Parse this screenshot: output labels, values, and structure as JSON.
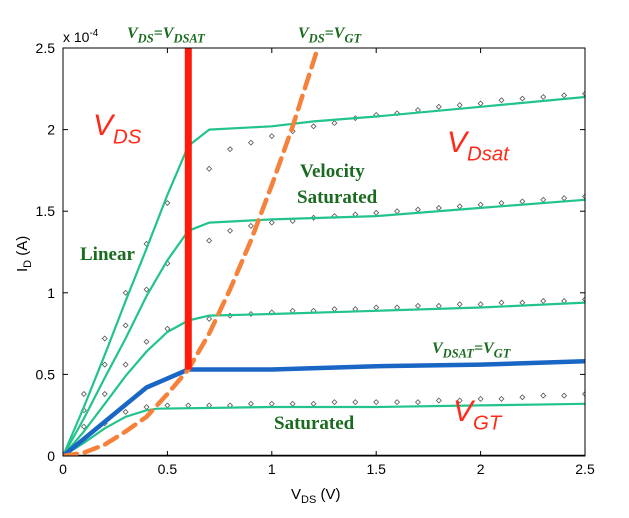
{
  "chart_data": {
    "type": "line",
    "title": "",
    "xlabel": {
      "main": "V",
      "sub": "DS",
      "unit": " (V)"
    },
    "ylabel": {
      "main": "I",
      "sub": "D",
      "unit": " (A)"
    },
    "y_multiplier": "x 10",
    "y_multiplier_exp": "-4",
    "xlim": [
      0,
      2.5
    ],
    "ylim": [
      0,
      2.5
    ],
    "x_ticks": [
      0,
      0.5,
      1,
      1.5,
      2,
      2.5
    ],
    "x_tick_labels": [
      "0",
      "0.5",
      "1",
      "1.5",
      "2",
      "2.5"
    ],
    "y_ticks": [
      0,
      0.5,
      1,
      1.5,
      2,
      2.5
    ],
    "y_tick_labels": [
      "0",
      "0.5",
      "1",
      "1.5",
      "2",
      "2.5"
    ],
    "grid": false,
    "colors": {
      "model": "#22c48c",
      "highlight": "#1a66c4",
      "vdsat_line": "#ff1a0a",
      "vgt_curve": "#f5813b",
      "red_text": "#ff2a1a",
      "green_text": "#1a6b1f",
      "axis_zero": "#000000"
    },
    "series": [
      {
        "role": "model",
        "points": [
          [
            0,
            0
          ],
          [
            0.1,
            0.3
          ],
          [
            0.2,
            0.62
          ],
          [
            0.3,
            0.95
          ],
          [
            0.4,
            1.27
          ],
          [
            0.5,
            1.6
          ],
          [
            0.6,
            1.9
          ],
          [
            0.7,
            2.0
          ],
          [
            1,
            2.02
          ],
          [
            1.2,
            2.05
          ],
          [
            1.5,
            2.08
          ],
          [
            2,
            2.14
          ],
          [
            2.5,
            2.2
          ]
        ]
      },
      {
        "role": "model",
        "points": [
          [
            0,
            0
          ],
          [
            0.1,
            0.23
          ],
          [
            0.2,
            0.48
          ],
          [
            0.3,
            0.72
          ],
          [
            0.4,
            0.98
          ],
          [
            0.5,
            1.2
          ],
          [
            0.6,
            1.38
          ],
          [
            0.7,
            1.43
          ],
          [
            1,
            1.45
          ],
          [
            1.5,
            1.47
          ],
          [
            2,
            1.52
          ],
          [
            2.5,
            1.57
          ]
        ]
      },
      {
        "role": "model",
        "points": [
          [
            0,
            0
          ],
          [
            0.1,
            0.15
          ],
          [
            0.2,
            0.32
          ],
          [
            0.3,
            0.49
          ],
          [
            0.4,
            0.64
          ],
          [
            0.5,
            0.76
          ],
          [
            0.6,
            0.83
          ],
          [
            0.7,
            0.86
          ],
          [
            1,
            0.87
          ],
          [
            1.5,
            0.89
          ],
          [
            2,
            0.91
          ],
          [
            2.5,
            0.94
          ]
        ]
      },
      {
        "role": "model",
        "points": [
          [
            0,
            0
          ],
          [
            0.1,
            0.08
          ],
          [
            0.2,
            0.17
          ],
          [
            0.3,
            0.24
          ],
          [
            0.4,
            0.28
          ],
          [
            0.45,
            0.29
          ],
          [
            1,
            0.3
          ],
          [
            1.5,
            0.3
          ],
          [
            2,
            0.31
          ],
          [
            2.5,
            0.32
          ]
        ]
      },
      {
        "role": "highlight",
        "points": [
          [
            0,
            0
          ],
          [
            0.4,
            0.42
          ],
          [
            0.6,
            0.53
          ],
          [
            1,
            0.53
          ],
          [
            1.5,
            0.55
          ],
          [
            2,
            0.56
          ],
          [
            2.5,
            0.58
          ]
        ]
      },
      {
        "role": "vgt_curve",
        "points": [
          [
            0,
            0
          ],
          [
            0.1,
            0.02
          ],
          [
            0.2,
            0.07
          ],
          [
            0.3,
            0.15
          ],
          [
            0.4,
            0.24
          ],
          [
            0.5,
            0.38
          ],
          [
            0.6,
            0.53
          ],
          [
            0.7,
            0.75
          ],
          [
            0.8,
            1.02
          ],
          [
            0.9,
            1.32
          ],
          [
            1,
            1.66
          ],
          [
            1.1,
            2.02
          ],
          [
            1.2,
            2.42
          ],
          [
            1.22,
            2.5
          ]
        ]
      },
      {
        "role": "vdsat_line",
        "points": [
          [
            0.6,
            0.53
          ],
          [
            0.6,
            2.5
          ]
        ]
      },
      {
        "role": "axis_zero",
        "points": [
          [
            0,
            0
          ],
          [
            2.5,
            0
          ]
        ]
      },
      {
        "role": "measured",
        "points": [
          [
            0.1,
            0.38
          ],
          [
            0.2,
            0.72
          ],
          [
            0.3,
            1.0
          ],
          [
            0.4,
            1.3
          ],
          [
            0.5,
            1.55
          ],
          [
            0.6,
            1.72
          ],
          [
            0.7,
            1.76
          ],
          [
            0.8,
            1.88
          ],
          [
            0.9,
            1.92
          ],
          [
            1,
            1.96
          ],
          [
            1.1,
            1.99
          ],
          [
            1.2,
            2.02
          ],
          [
            1.3,
            2.04
          ],
          [
            1.4,
            2.07
          ],
          [
            1.5,
            2.09
          ],
          [
            1.6,
            2.1
          ],
          [
            1.7,
            2.12
          ],
          [
            1.8,
            2.14
          ],
          [
            1.9,
            2.15
          ],
          [
            2,
            2.16
          ],
          [
            2.1,
            2.18
          ],
          [
            2.2,
            2.19
          ],
          [
            2.3,
            2.2
          ],
          [
            2.4,
            2.21
          ],
          [
            2.5,
            2.22
          ],
          [
            0.1,
            0.28
          ],
          [
            0.2,
            0.56
          ],
          [
            0.3,
            0.8
          ],
          [
            0.4,
            1.02
          ],
          [
            0.5,
            1.18
          ],
          [
            0.6,
            1.28
          ],
          [
            0.7,
            1.32
          ],
          [
            0.8,
            1.38
          ],
          [
            0.9,
            1.41
          ],
          [
            1,
            1.43
          ],
          [
            1.1,
            1.44
          ],
          [
            1.2,
            1.46
          ],
          [
            1.3,
            1.47
          ],
          [
            1.4,
            1.48
          ],
          [
            1.5,
            1.49
          ],
          [
            1.6,
            1.5
          ],
          [
            1.7,
            1.51
          ],
          [
            1.8,
            1.52
          ],
          [
            1.9,
            1.53
          ],
          [
            2,
            1.54
          ],
          [
            2.1,
            1.55
          ],
          [
            2.2,
            1.56
          ],
          [
            2.3,
            1.57
          ],
          [
            2.4,
            1.58
          ],
          [
            2.5,
            1.59
          ],
          [
            0.1,
            0.18
          ],
          [
            0.2,
            0.38
          ],
          [
            0.3,
            0.56
          ],
          [
            0.4,
            0.7
          ],
          [
            0.5,
            0.78
          ],
          [
            0.6,
            0.82
          ],
          [
            0.7,
            0.84
          ],
          [
            0.8,
            0.86
          ],
          [
            0.9,
            0.87
          ],
          [
            1,
            0.88
          ],
          [
            1.1,
            0.89
          ],
          [
            1.2,
            0.89
          ],
          [
            1.3,
            0.9
          ],
          [
            1.4,
            0.9
          ],
          [
            1.5,
            0.91
          ],
          [
            1.6,
            0.91
          ],
          [
            1.7,
            0.92
          ],
          [
            1.8,
            0.92
          ],
          [
            1.9,
            0.93
          ],
          [
            2,
            0.93
          ],
          [
            2.1,
            0.94
          ],
          [
            2.2,
            0.94
          ],
          [
            2.3,
            0.95
          ],
          [
            2.4,
            0.95
          ],
          [
            2.5,
            0.96
          ],
          [
            0.1,
            0.1
          ],
          [
            0.2,
            0.2
          ],
          [
            0.3,
            0.27
          ],
          [
            0.4,
            0.3
          ],
          [
            0.5,
            0.31
          ],
          [
            0.6,
            0.31
          ],
          [
            0.7,
            0.31
          ],
          [
            0.8,
            0.31
          ],
          [
            0.9,
            0.32
          ],
          [
            1,
            0.32
          ],
          [
            1.1,
            0.32
          ],
          [
            1.2,
            0.32
          ],
          [
            1.3,
            0.33
          ],
          [
            1.4,
            0.33
          ],
          [
            1.5,
            0.33
          ],
          [
            1.6,
            0.33
          ],
          [
            1.7,
            0.33
          ],
          [
            1.8,
            0.34
          ],
          [
            1.9,
            0.34
          ],
          [
            2,
            0.35
          ],
          [
            2.1,
            0.35
          ],
          [
            2.2,
            0.36
          ],
          [
            2.3,
            0.37
          ],
          [
            2.4,
            0.37
          ],
          [
            2.5,
            0.38
          ]
        ]
      }
    ],
    "annotations": [
      {
        "id": "vds-top",
        "style": "green-italic",
        "parts": [
          [
            "V",
            ""
          ],
          [
            "DS",
            "sub"
          ],
          [
            "=V",
            ""
          ],
          [
            "DSAT",
            "sub"
          ]
        ]
      },
      {
        "id": "vgt-top",
        "style": "green-italic",
        "parts": [
          [
            "V",
            ""
          ],
          [
            "DS",
            "sub"
          ],
          [
            "=V",
            ""
          ],
          [
            "GT",
            "sub"
          ]
        ]
      },
      {
        "id": "vds-red",
        "style": "red",
        "parts": [
          [
            "V",
            ""
          ],
          [
            "DS",
            "sub"
          ]
        ]
      },
      {
        "id": "vdsat-red",
        "style": "red",
        "parts": [
          [
            "V",
            ""
          ],
          [
            "Dsat",
            "sub"
          ]
        ]
      },
      {
        "id": "vgt-red",
        "style": "red",
        "parts": [
          [
            "V",
            ""
          ],
          [
            "GT",
            "sub"
          ]
        ]
      },
      {
        "id": "vdsat-eq-vgt",
        "style": "green-italic",
        "parts": [
          [
            "V",
            ""
          ],
          [
            "DSAT",
            "sub"
          ],
          [
            "=V",
            ""
          ],
          [
            "GT",
            "sub"
          ]
        ]
      },
      {
        "id": "linear",
        "style": "green",
        "parts": [
          [
            "Linear",
            ""
          ]
        ]
      },
      {
        "id": "velocity",
        "style": "green",
        "parts": [
          [
            "Velocity",
            ""
          ]
        ]
      },
      {
        "id": "saturated-1",
        "style": "green",
        "parts": [
          [
            "Saturated",
            ""
          ]
        ]
      },
      {
        "id": "saturated-2",
        "style": "green",
        "parts": [
          [
            "Saturated",
            ""
          ]
        ]
      }
    ]
  }
}
